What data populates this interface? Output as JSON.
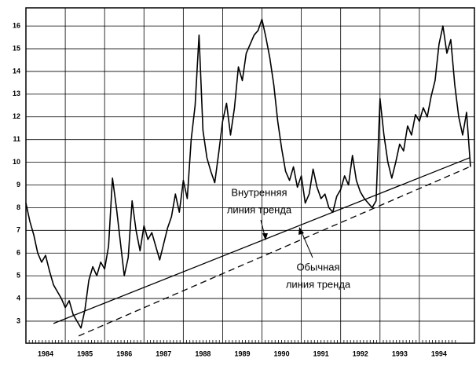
{
  "chart_data": {
    "type": "line",
    "x": [
      1984.0,
      1984.1,
      1984.2,
      1984.3,
      1984.4,
      1984.5,
      1984.6,
      1984.7,
      1984.8,
      1984.9,
      1985.0,
      1985.1,
      1985.2,
      1985.3,
      1985.4,
      1985.5,
      1985.6,
      1985.7,
      1985.8,
      1985.9,
      1986.0,
      1986.1,
      1986.2,
      1986.3,
      1986.4,
      1986.5,
      1986.6,
      1986.7,
      1986.8,
      1986.9,
      1987.0,
      1987.1,
      1987.2,
      1987.3,
      1987.4,
      1987.5,
      1987.6,
      1987.7,
      1987.8,
      1987.9,
      1988.0,
      1988.1,
      1988.2,
      1988.3,
      1988.4,
      1988.5,
      1988.6,
      1988.7,
      1988.8,
      1988.9,
      1989.0,
      1989.1,
      1989.2,
      1989.3,
      1989.4,
      1989.5,
      1989.6,
      1989.7,
      1989.8,
      1989.9,
      1990.0,
      1990.1,
      1990.2,
      1990.3,
      1990.4,
      1990.5,
      1990.6,
      1990.7,
      1990.8,
      1990.9,
      1991.0,
      1991.1,
      1991.2,
      1991.3,
      1991.4,
      1991.5,
      1991.6,
      1991.7,
      1991.8,
      1991.9,
      1992.0,
      1992.1,
      1992.2,
      1992.3,
      1992.4,
      1992.5,
      1992.6,
      1992.7,
      1992.8,
      1992.9,
      1993.0,
      1993.1,
      1993.2,
      1993.3,
      1993.4,
      1993.5,
      1993.6,
      1993.7,
      1993.8,
      1993.9,
      1994.0,
      1994.1,
      1994.2,
      1994.3,
      1994.4,
      1994.5,
      1994.6,
      1994.7,
      1994.8,
      1994.9,
      1995.0,
      1995.1,
      1995.2,
      1995.3
    ],
    "series": [
      {
        "color": "#000000",
        "values": [
          8.2,
          7.4,
          6.8,
          6.0,
          5.6,
          5.9,
          5.2,
          4.6,
          4.3,
          4.0,
          3.6,
          3.9,
          3.3,
          3.0,
          2.7,
          3.5,
          4.8,
          5.4,
          5.0,
          5.6,
          5.3,
          6.3,
          9.3,
          8.0,
          6.5,
          5.0,
          5.8,
          8.3,
          7.0,
          6.1,
          7.2,
          6.6,
          6.9,
          6.3,
          5.7,
          6.4,
          7.1,
          7.6,
          8.6,
          7.8,
          9.2,
          8.4,
          11.0,
          12.5,
          15.6,
          11.4,
          10.2,
          9.6,
          9.1,
          10.4,
          11.8,
          12.6,
          11.2,
          12.4,
          14.2,
          13.6,
          14.8,
          15.2,
          15.6,
          15.8,
          16.3,
          15.5,
          14.6,
          13.4,
          11.8,
          10.6,
          9.6,
          9.2,
          9.8,
          8.9,
          9.4,
          8.2,
          8.6,
          9.7,
          8.9,
          8.4,
          8.6,
          8.0,
          7.8,
          8.5,
          8.8,
          9.4,
          9.0,
          10.3,
          9.2,
          8.7,
          8.4,
          8.2,
          8.0,
          8.3,
          12.8,
          11.2,
          10.0,
          9.3,
          10.0,
          10.8,
          10.5,
          11.6,
          11.2,
          12.1,
          11.8,
          12.4,
          12.0,
          12.9,
          13.6,
          15.2,
          16.0,
          14.8,
          15.4,
          13.4,
          12.0,
          11.2,
          12.2,
          9.8
        ]
      }
    ],
    "trendlines": [
      {
        "x": [
          1984.7,
          1995.28
        ],
        "y": [
          2.9,
          10.2
        ],
        "dash": false
      },
      {
        "x": [
          1985.34,
          1995.28
        ],
        "y": [
          2.35,
          9.8
        ],
        "dash": true
      }
    ],
    "annotations": [
      {
        "lines": [
          "Внутренняя",
          "линия тренда"
        ]
      },
      {
        "lines": [
          "Обычная",
          "линия тренда"
        ]
      }
    ],
    "xlim": [
      1984,
      1995.4
    ],
    "xticks": [
      1984,
      1985,
      1986,
      1987,
      1988,
      1989,
      1990,
      1991,
      1992,
      1993,
      1994
    ],
    "ylim": [
      2.03,
      16.8
    ],
    "yticks": [
      3,
      4,
      5,
      6,
      7,
      8,
      9,
      10,
      11,
      12,
      13,
      14,
      15,
      16
    ],
    "grid": true
  }
}
